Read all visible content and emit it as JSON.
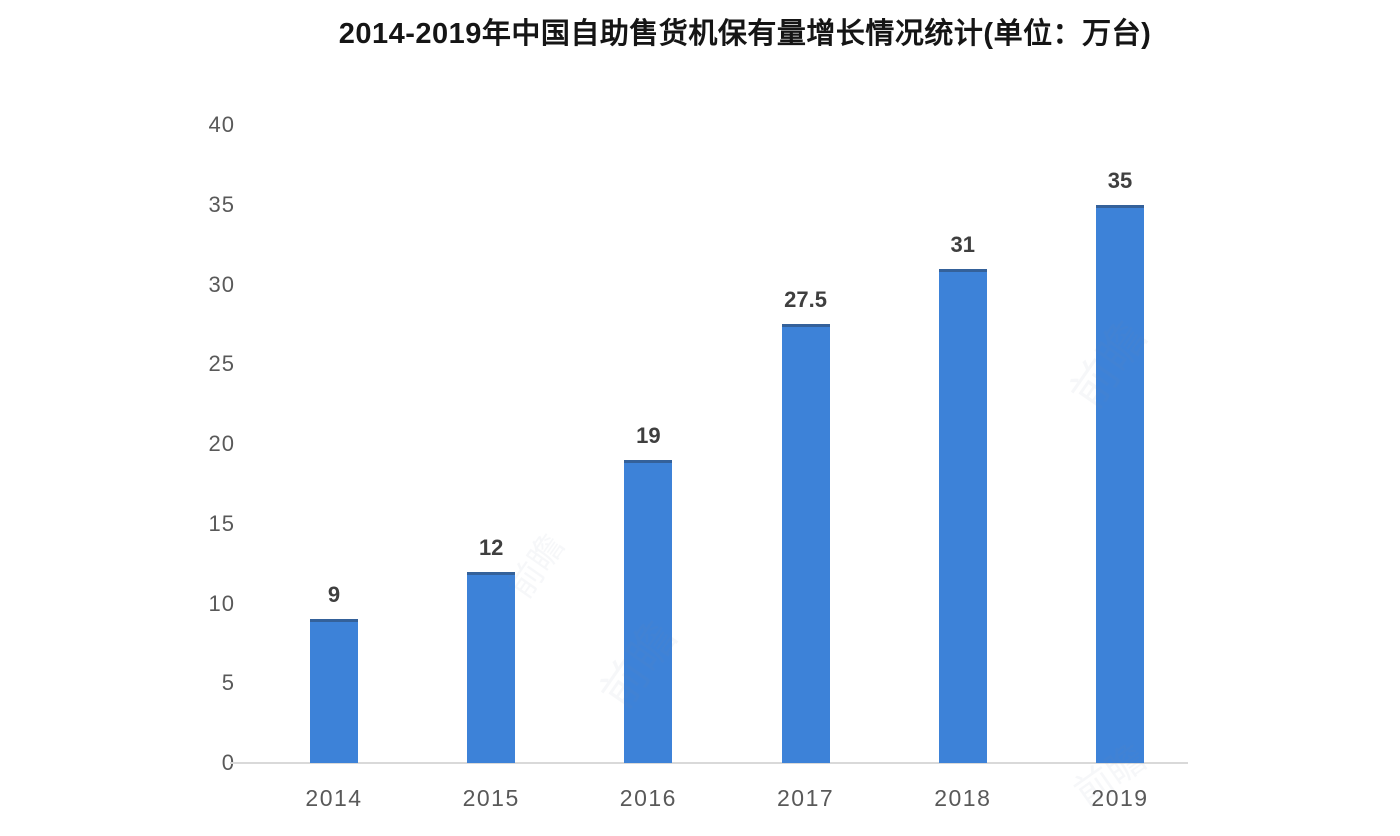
{
  "chart_data": {
    "type": "bar",
    "title": "2014-2019年中国自助售货机保有量增长情况统计(单位：万台)",
    "categories": [
      "2014",
      "2015",
      "2016",
      "2017",
      "2018",
      "2019"
    ],
    "values": [
      9,
      12,
      19,
      27.5,
      31,
      35
    ],
    "value_labels": [
      "9",
      "12",
      "19",
      "27.5",
      "31",
      "35"
    ],
    "series_name": "中国自助售货机保有量",
    "unit": "万台",
    "xlabel": "",
    "ylabel": "",
    "ylim": [
      0,
      40
    ],
    "yticks": [
      0,
      5,
      10,
      15,
      20,
      25,
      30,
      35,
      40
    ],
    "grid": false,
    "legend_position": "none",
    "colors": {
      "bar": "#3d82d8",
      "axis_line": "#d9d9d9",
      "tick_label": "#595959",
      "value_label": "#3f3f3f",
      "title": "#151515",
      "background": "#ffffff"
    }
  },
  "watermark": {
    "text": "前瞻"
  }
}
